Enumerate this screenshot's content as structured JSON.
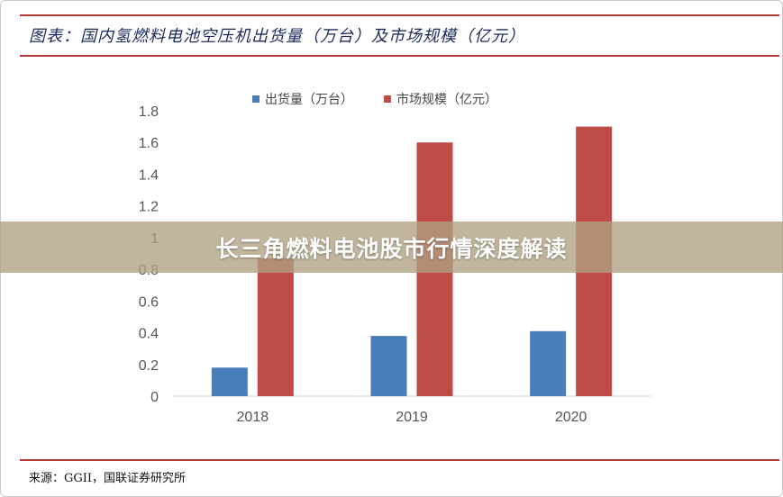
{
  "header": {
    "title": "图表：国内氢燃料电池空压机出货量（万台）及市场规模（亿元）"
  },
  "source": "来源：GGII，国联证券研究所",
  "banner": {
    "text": "长三角燃料电池股市行情深度解读"
  },
  "colors": {
    "accent": "#b83838",
    "series_blue": "#4a7ebb",
    "series_red": "#be4b48"
  },
  "chart_data": {
    "type": "bar",
    "categories": [
      "2018",
      "2019",
      "2020"
    ],
    "series": [
      {
        "name": "出货量（万台）",
        "values": [
          0.18,
          0.38,
          0.41
        ],
        "color": "#4a7ebb"
      },
      {
        "name": "市场规模（亿元）",
        "values": [
          0.87,
          1.6,
          1.7
        ],
        "color": "#be4b48"
      }
    ],
    "ylim": [
      0,
      1.8
    ],
    "yticks": [
      "0",
      "0.2",
      "0.4",
      "0.6",
      "0.8",
      "1",
      "1.2",
      "1.4",
      "1.6",
      "1.8"
    ],
    "grid": false,
    "legend": "top"
  }
}
